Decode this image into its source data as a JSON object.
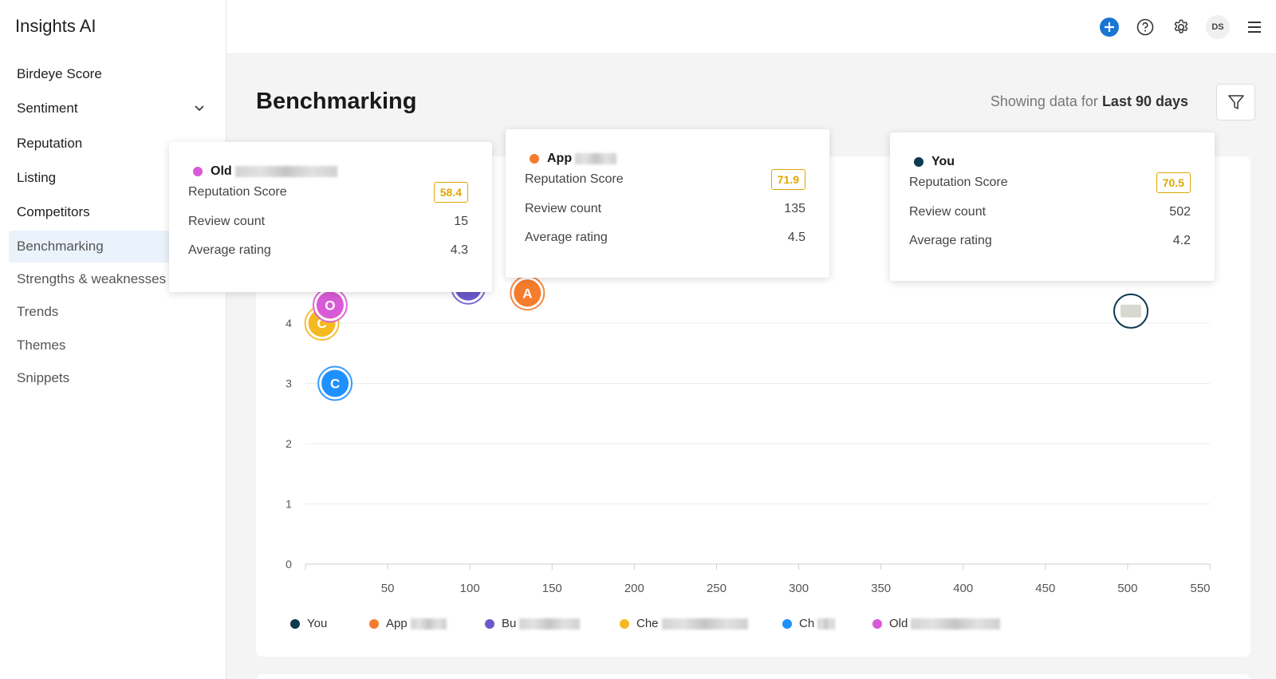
{
  "app": {
    "title": "Insights AI"
  },
  "sidebar": {
    "items": [
      {
        "label": "Birdeye Score"
      },
      {
        "label": "Sentiment"
      },
      {
        "label": "Reputation"
      },
      {
        "label": "Listing"
      },
      {
        "label": "Competitors"
      },
      {
        "label": "Benchmarking"
      },
      {
        "label": "Strengths & weaknesses"
      },
      {
        "label": "Trends"
      },
      {
        "label": "Themes"
      },
      {
        "label": "Snippets"
      }
    ],
    "active": "Benchmarking"
  },
  "topbar": {
    "icons": [
      "add-icon",
      "help-icon",
      "gear-icon",
      "avatar",
      "menu-icon"
    ],
    "avatar_initials": "DS",
    "accent": "#1976d2"
  },
  "header": {
    "title": "Benchmarking",
    "range_prefix": "Showing data for",
    "range_value": "Last 90 days"
  },
  "tooltips": [
    {
      "name": "Old",
      "color": "#d95ad6",
      "score_label": "Reputation Score",
      "score": "58.4",
      "review_label": "Review count",
      "review": "15",
      "rating_label": "Average rating",
      "rating": "4.3"
    },
    {
      "name": "App",
      "color": "#f57c2c",
      "score_label": "Reputation Score",
      "score": "71.9",
      "review_label": "Review count",
      "review": "135",
      "rating_label": "Average rating",
      "rating": "4.5"
    },
    {
      "name": "You",
      "color": "#0d3a4f",
      "score_label": "Reputation Score",
      "score": "70.5",
      "review_label": "Review count",
      "review": "502",
      "rating_label": "Average rating",
      "rating": "4.2"
    }
  ],
  "chart_data": {
    "type": "scatter",
    "x_ticks": [
      50,
      100,
      150,
      200,
      250,
      300,
      350,
      400,
      450,
      500,
      550
    ],
    "y_ticks": [
      0,
      1,
      2,
      3,
      4
    ],
    "xlim": [
      0,
      550
    ],
    "ylim": [
      0,
      4
    ],
    "grid": true,
    "legend_position": "bottom-left",
    "series": [
      {
        "name": "You",
        "color": "#0d3a4f",
        "x": 502,
        "y": 4.2,
        "letter": ""
      },
      {
        "name": "App",
        "color": "#f57c2c",
        "x": 135,
        "y": 4.5,
        "letter": "A"
      },
      {
        "name": "Bu",
        "color": "#6a5acd",
        "x": 99,
        "y": 4.6,
        "letter": "B"
      },
      {
        "name": "Che",
        "color": "#f5b921",
        "x": 10,
        "y": 4.0,
        "letter": "C"
      },
      {
        "name": "Ch",
        "color": "#1e90ff",
        "x": 18,
        "y": 3.0,
        "letter": "C"
      },
      {
        "name": "Old",
        "color": "#d95ad6",
        "x": 15,
        "y": 4.3,
        "letter": "O"
      }
    ]
  }
}
